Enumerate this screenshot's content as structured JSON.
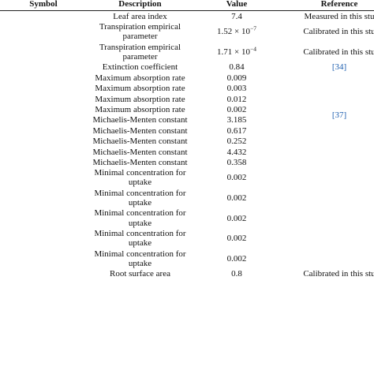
{
  "table": {
    "header": [
      "Symbol",
      "Description",
      "Value",
      "Reference"
    ],
    "rows": [
      {
        "description": "Leaf area index",
        "value": "7.4",
        "reference": "Measured in this stu"
      },
      {
        "description": "Transpiration empirical parameter",
        "value": {
          "mantissa": "1.52 × 10",
          "exponent": "−7"
        },
        "reference": "Calibrated in this stu"
      },
      {
        "description": "Transpiration empirical parameter",
        "value": {
          "mantissa": "1.71 × 10",
          "exponent": "−4"
        },
        "reference": "Calibrated in this stu"
      },
      {
        "description": "Extinction coefficient",
        "value": "0.84",
        "citation": "[34]"
      },
      {
        "description": "Maximum absorption rate",
        "value": "0.009",
        "citation": "[37]"
      },
      {
        "description": "Maximum absorption rate",
        "value": "0.003"
      },
      {
        "description": "Maximum absorption rate",
        "value": "0.012"
      },
      {
        "description": "Maximum absorption rate",
        "value": "0.002"
      },
      {
        "description": "Michaelis-Menten constant",
        "value": "3.185"
      },
      {
        "description": "Michaelis-Menten constant",
        "value": "0.617"
      },
      {
        "description": "Michaelis-Menten constant",
        "value": "0.252"
      },
      {
        "description": "Michaelis-Menten constant",
        "value": "4.432"
      },
      {
        "description": "Michaelis-Menten constant",
        "value": "0.358"
      },
      {
        "description": "Minimal concentration for uptake",
        "value": "0.002"
      },
      {
        "description": "Minimal concentration for uptake",
        "value": "0.002"
      },
      {
        "description": "Minimal concentration for uptake",
        "value": "0.002"
      },
      {
        "description": "Minimal concentration for uptake",
        "value": "0.002"
      },
      {
        "description": "Minimal concentration for uptake",
        "value": "0.002"
      },
      {
        "description": "Root surface area",
        "value": "0.8",
        "reference": "Calibrated in this stu"
      }
    ]
  }
}
